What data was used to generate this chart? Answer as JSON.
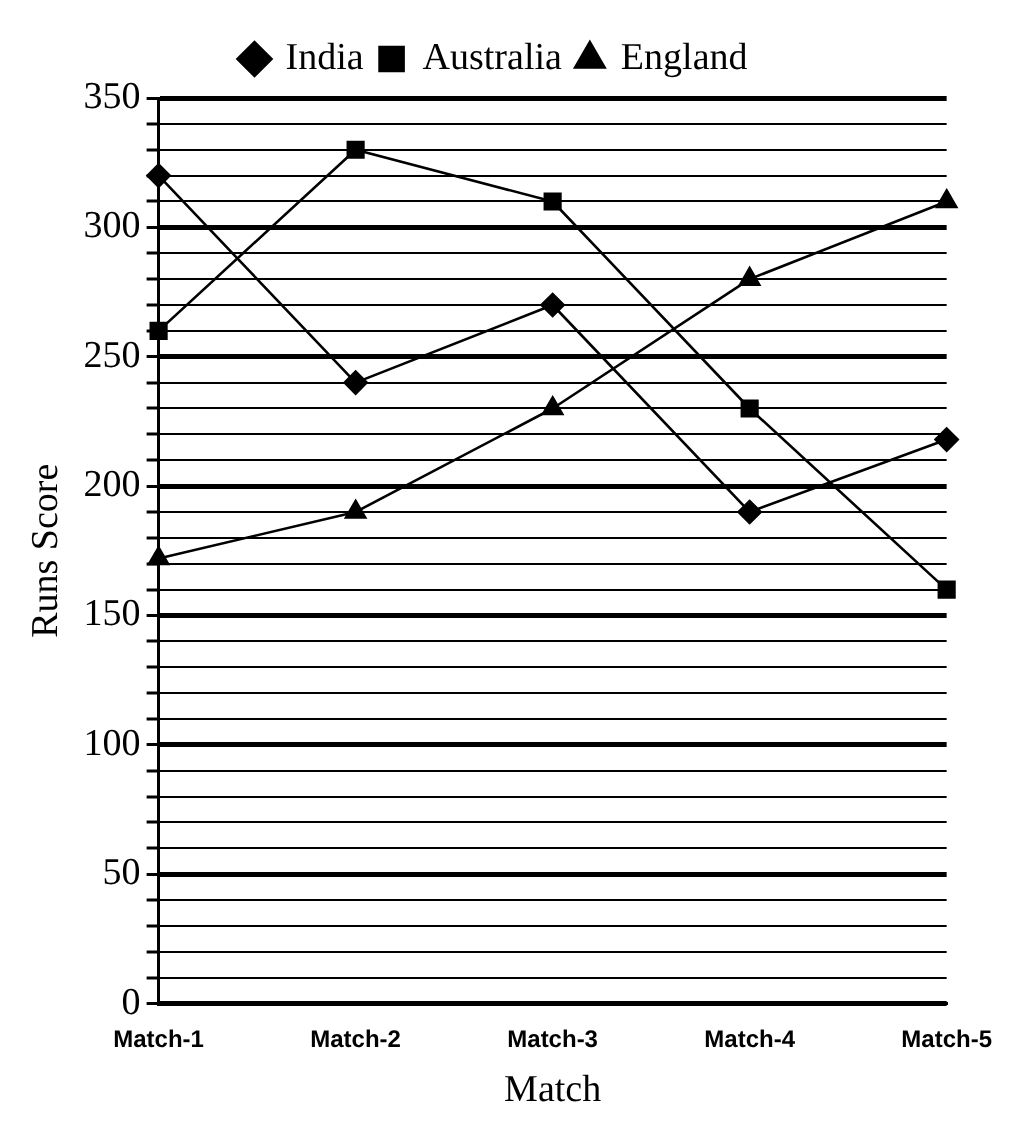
{
  "chart_data": {
    "type": "line",
    "xlabel": "Match",
    "ylabel": "Runs Score",
    "categories": [
      "Match-1",
      "Match-2",
      "Match-3",
      "Match-4",
      "Match-5"
    ],
    "series": [
      {
        "name": "India",
        "color": "#000000",
        "marker": "diamond",
        "values": [
          320,
          240,
          270,
          190,
          218
        ]
      },
      {
        "name": "Australia",
        "color": "#000000",
        "marker": "square",
        "values": [
          260,
          330,
          310,
          230,
          160
        ]
      },
      {
        "name": "England",
        "color": "#000000",
        "marker": "triangle",
        "values": [
          172,
          190,
          230,
          280,
          310
        ]
      }
    ],
    "ylim": [
      0,
      350
    ],
    "yticks": [
      0,
      {
        "value": 10,
        "label": null
      },
      {
        "value": 20,
        "label": null
      },
      {
        "value": 30,
        "label": null
      },
      {
        "value": 40,
        "label": null
      },
      50,
      {
        "value": 60,
        "label": null
      },
      {
        "value": 70,
        "label": null
      },
      {
        "value": 80,
        "label": null
      },
      {
        "value": 90,
        "label": null
      },
      100,
      {
        "value": 110,
        "label": null
      },
      {
        "value": 120,
        "label": null
      },
      {
        "value": 130,
        "label": null
      },
      {
        "value": 140,
        "label": null
      },
      150,
      {
        "value": 160,
        "label": null
      },
      {
        "value": 170,
        "label": null
      },
      {
        "value": 180,
        "label": null
      },
      {
        "value": 190,
        "label": null
      },
      200,
      {
        "value": 210,
        "label": null
      },
      {
        "value": 220,
        "label": null
      },
      {
        "value": 230,
        "label": null
      },
      {
        "value": 240,
        "label": null
      },
      250,
      {
        "value": 260,
        "label": null
      },
      {
        "value": 270,
        "label": null
      },
      {
        "value": 280,
        "label": null
      },
      {
        "value": 290,
        "label": null
      },
      300,
      {
        "value": 310,
        "label": null
      },
      {
        "value": 320,
        "label": null
      },
      {
        "value": 330,
        "label": null
      },
      {
        "value": 340,
        "label": null
      },
      350
    ],
    "grid": "y",
    "legend": "top",
    "line_style": "solid"
  }
}
